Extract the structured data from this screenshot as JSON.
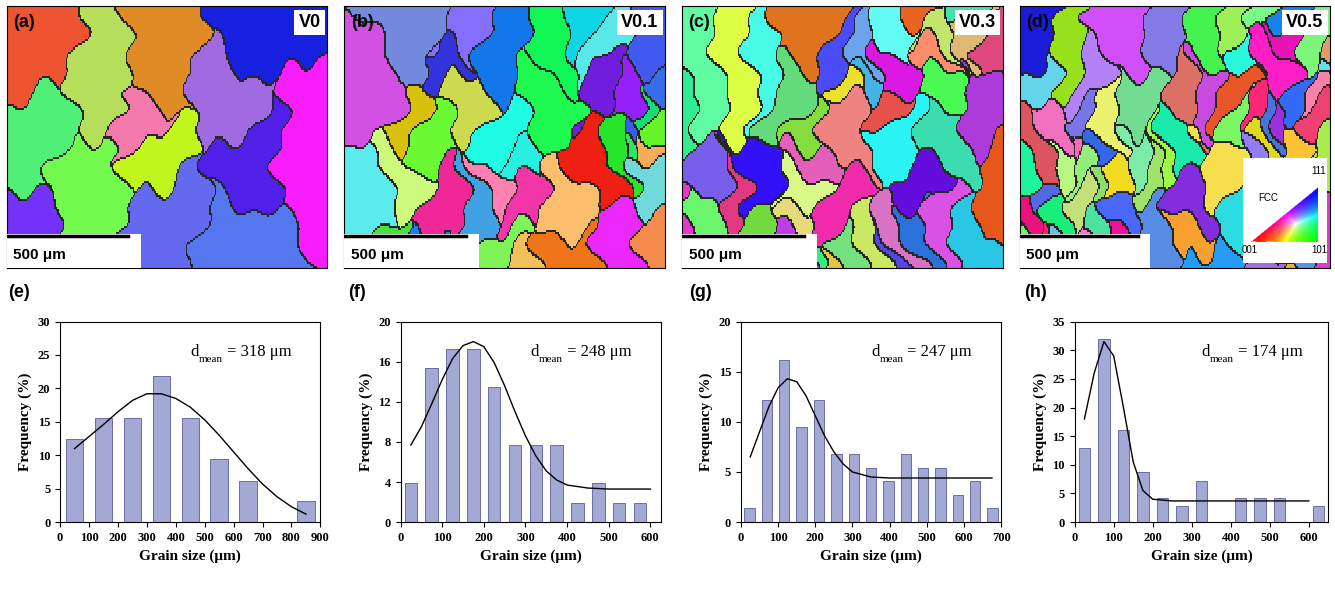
{
  "maps": [
    {
      "panel": "(a)",
      "label": "V0",
      "scale_bar": "500 μm"
    },
    {
      "panel": "(b)",
      "label": "V0.1",
      "scale_bar": "500 μm"
    },
    {
      "panel": "(c)",
      "label": "V0.3",
      "scale_bar": "500 μm"
    },
    {
      "panel": "(d)",
      "label": "V0.5",
      "scale_bar": "500 μm"
    }
  ],
  "ipf_legend": {
    "title": "FCC",
    "corner_111": "111",
    "corner_001": "001",
    "corner_101": "101"
  },
  "chart_data": [
    {
      "type": "histogram",
      "panel": "(e)",
      "annotation": {
        "base": "d",
        "subscript": "mean",
        "text": " = 318 μm"
      },
      "x_label": "Grain size (μm)",
      "y_label": "Frequency (%)",
      "bins": [
        0,
        100,
        200,
        300,
        400,
        500,
        600,
        700,
        800,
        900
      ],
      "counts": [
        12.5,
        15.6,
        15.6,
        21.9,
        15.6,
        9.4,
        6.2,
        0,
        3.1
      ],
      "color": "#a3a8d4",
      "fit": {
        "type": "line",
        "color": "#000000",
        "x": [
          50,
          100,
          150,
          200,
          250,
          300,
          350,
          400,
          450,
          500,
          550,
          600,
          650,
          700,
          750,
          800,
          850
        ],
        "values": [
          11.0,
          12.8,
          14.6,
          16.5,
          18.2,
          19.2,
          19.2,
          18.5,
          17.2,
          15.3,
          13.0,
          10.5,
          8.0,
          5.7,
          3.8,
          2.3,
          1.2
        ]
      },
      "xlim": [
        0,
        900
      ],
      "xticks": [
        0,
        100,
        200,
        300,
        400,
        500,
        600,
        700,
        800,
        900
      ],
      "ylim": [
        0,
        30
      ],
      "yticks": [
        0,
        5,
        10,
        15,
        20,
        25,
        30
      ]
    },
    {
      "type": "histogram",
      "panel": "(f)",
      "annotation": {
        "base": "d",
        "subscript": "mean",
        "text": " = 248 μm"
      },
      "x_label": "Grain size (μm)",
      "y_label": "Frequency (%)",
      "bins": [
        0,
        50,
        100,
        150,
        200,
        250,
        300,
        350,
        400,
        450,
        500,
        550,
        600
      ],
      "counts": [
        3.9,
        15.4,
        17.3,
        17.3,
        13.5,
        7.7,
        7.7,
        7.7,
        1.9,
        3.9,
        1.9,
        1.9
      ],
      "color": "#a3a8d4",
      "fit": {
        "type": "line",
        "color": "#000000",
        "x": [
          25,
          50,
          75,
          100,
          125,
          150,
          175,
          200,
          225,
          250,
          275,
          300,
          325,
          350,
          375,
          400,
          450,
          500,
          550,
          600
        ],
        "values": [
          7.7,
          9.5,
          11.8,
          14.2,
          16.3,
          17.6,
          18.0,
          17.5,
          15.9,
          13.6,
          11.0,
          8.6,
          6.6,
          5.1,
          4.2,
          3.7,
          3.4,
          3.3,
          3.3,
          3.3
        ]
      },
      "xlim": [
        0,
        625
      ],
      "xticks": [
        0,
        100,
        200,
        300,
        400,
        500,
        600
      ],
      "ylim": [
        0,
        20
      ],
      "yticks": [
        0,
        4,
        8,
        12,
        16,
        20
      ]
    },
    {
      "type": "histogram",
      "panel": "(g)",
      "annotation": {
        "base": "d",
        "subscript": "mean",
        "text": " = 247 μm"
      },
      "x_label": "Grain size (μm)",
      "y_label": "Frequency (%)",
      "bins": [
        0,
        47,
        93,
        140,
        187,
        233,
        280,
        327,
        373,
        420,
        467,
        513,
        560,
        607,
        653,
        700
      ],
      "counts": [
        1.4,
        12.2,
        16.2,
        9.5,
        12.2,
        6.8,
        6.8,
        5.4,
        4.1,
        6.8,
        5.4,
        5.4,
        2.7,
        4.1,
        1.4
      ],
      "color": "#a3a8d4",
      "fit": {
        "type": "line",
        "color": "#000000",
        "x": [
          25,
          50,
          75,
          100,
          125,
          150,
          175,
          200,
          225,
          250,
          275,
          300,
          350,
          400,
          500,
          600,
          675
        ],
        "values": [
          6.5,
          9.0,
          11.5,
          13.4,
          14.3,
          14.0,
          12.6,
          10.6,
          8.6,
          7.0,
          5.8,
          5.0,
          4.5,
          4.4,
          4.4,
          4.4,
          4.4
        ]
      },
      "xlim": [
        0,
        700
      ],
      "xticks": [
        0,
        100,
        200,
        300,
        400,
        500,
        600,
        700
      ],
      "ylim": [
        0,
        20
      ],
      "yticks": [
        0,
        5,
        10,
        15,
        20
      ]
    },
    {
      "type": "histogram",
      "panel": "(h)",
      "annotation": {
        "base": "d",
        "subscript": "mean",
        "text": " = 174 μm"
      },
      "x_label": "Grain size (μm)",
      "y_label": "Frequency (%)",
      "bins": [
        0,
        50,
        100,
        150,
        200,
        250,
        300,
        350,
        400,
        450,
        500,
        550,
        600,
        650
      ],
      "counts": [
        13.0,
        32.0,
        16.0,
        8.7,
        4.3,
        2.9,
        7.2,
        0,
        4.3,
        4.3,
        4.3,
        0,
        2.9
      ],
      "color": "#a3a8d4",
      "fit": {
        "type": "line",
        "color": "#000000",
        "x": [
          25,
          50,
          75,
          100,
          125,
          150,
          175,
          200,
          250,
          300,
          400,
          500,
          600
        ],
        "values": [
          18.0,
          26.0,
          31.5,
          29.0,
          20.0,
          10.5,
          5.5,
          4.0,
          3.7,
          3.7,
          3.7,
          3.7,
          3.7
        ]
      },
      "xlim": [
        0,
        650
      ],
      "xticks": [
        0,
        100,
        200,
        300,
        400,
        500,
        600
      ],
      "ylim": [
        0,
        35
      ],
      "yticks": [
        0,
        5,
        10,
        15,
        20,
        25,
        30,
        35
      ]
    }
  ]
}
